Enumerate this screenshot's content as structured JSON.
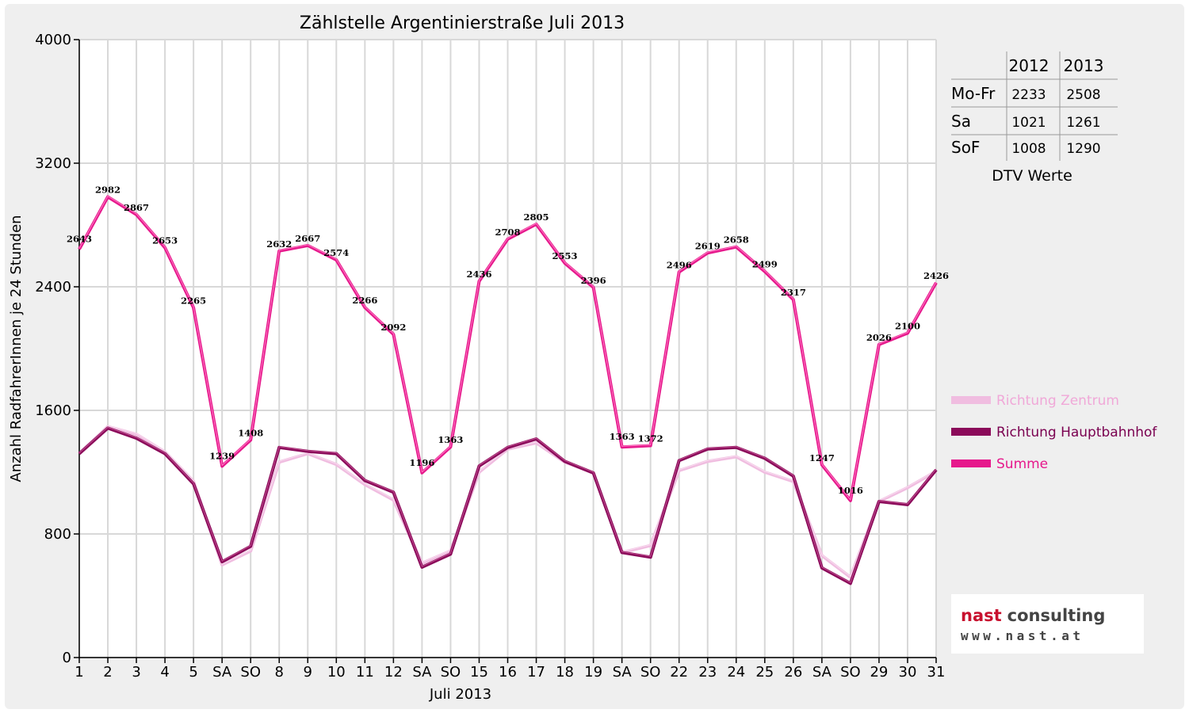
{
  "chart_data": {
    "type": "line",
    "title": "Zählstelle Argentinierstraße Juli 2013",
    "xlabel": "Juli 2013",
    "ylabel": "Anzahl RadfahrerInnen je 24 Stunden",
    "ylim": [
      0,
      4000
    ],
    "yticks": [
      0,
      800,
      1600,
      2400,
      3200,
      4000
    ],
    "grid": true,
    "legend_position": "right",
    "categories": [
      "1",
      "2",
      "3",
      "4",
      "5",
      "SA",
      "SO",
      "8",
      "9",
      "10",
      "11",
      "12",
      "SA",
      "SO",
      "15",
      "16",
      "17",
      "18",
      "19",
      "SA",
      "SO",
      "22",
      "23",
      "24",
      "25",
      "26",
      "SA",
      "SO",
      "29",
      "30",
      "31"
    ],
    "red_categories": [
      "SO"
    ],
    "series": [
      {
        "name": "Richtung Zentrum",
        "color": "#f0bde0",
        "values": [
          1320,
          1495,
          1445,
          1330,
          1140,
          600,
          690,
          1265,
          1320,
          1250,
          1120,
          1020,
          610,
          690,
          1200,
          1350,
          1390,
          1265,
          1195,
          680,
          725,
          1210,
          1270,
          1300,
          1200,
          1140,
          660,
          520,
          1010,
          1100,
          1205
        ]
      },
      {
        "name": "Richtung Hauptbahnhof",
        "color": "#8b0a5a",
        "values": [
          1320,
          1485,
          1420,
          1320,
          1125,
          620,
          720,
          1360,
          1335,
          1320,
          1146,
          1070,
          585,
          670,
          1240,
          1360,
          1415,
          1270,
          1195,
          680,
          650,
          1275,
          1350,
          1360,
          1290,
          1175,
          580,
          480,
          1010,
          990,
          1215
        ]
      },
      {
        "name": "Summe",
        "color": "#e6198c",
        "values": [
          2643,
          2982,
          2867,
          2653,
          2265,
          1239,
          1408,
          2632,
          2667,
          2574,
          2266,
          2092,
          1196,
          1363,
          2436,
          2708,
          2805,
          2553,
          2396,
          1363,
          1372,
          2496,
          2619,
          2658,
          2499,
          2317,
          1247,
          1016,
          2026,
          2100,
          2426
        ]
      }
    ],
    "data_labels": [
      "2643",
      "2982",
      "2867",
      "2653",
      "2265",
      "1239",
      "1408",
      "2632",
      "2667",
      "2574",
      "2266",
      "2092",
      "1196",
      "1363",
      "2436",
      "2708",
      "2805",
      "2553",
      "2396",
      "1363",
      "1372",
      "2496",
      "2619",
      "2658",
      "2499",
      "2317",
      "1247",
      "1016",
      "2026",
      "2100",
      "2426"
    ]
  },
  "dtv_table": {
    "columns": [
      "2012",
      "2013"
    ],
    "rows": [
      {
        "label": "Mo-Fr",
        "values": [
          "2233",
          "2508"
        ]
      },
      {
        "label": "Sa",
        "values": [
          "1021",
          "1261"
        ]
      },
      {
        "label": "SoF",
        "values": [
          "1008",
          "1290"
        ]
      }
    ],
    "caption": "DTV Werte"
  },
  "logo": {
    "name_part1": "nast",
    "name_part2": "consulting",
    "url": "www.nast.at"
  }
}
